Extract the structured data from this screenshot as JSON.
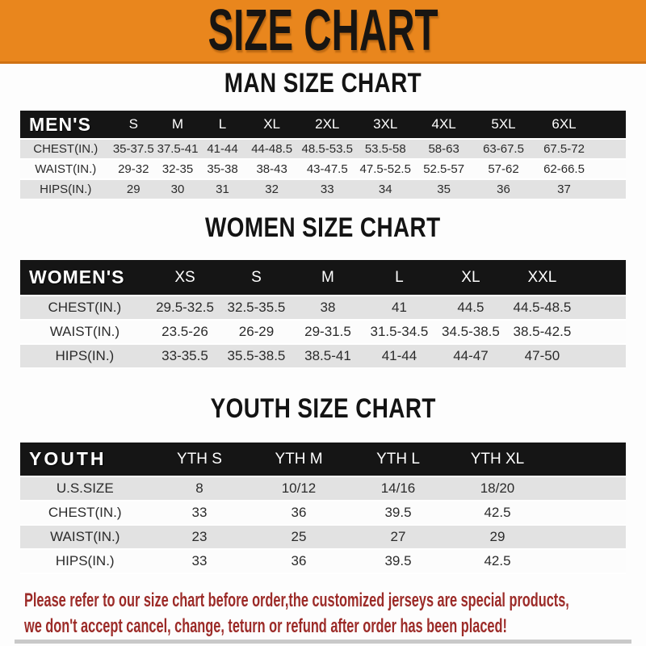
{
  "banner": {
    "title": "SIZE CHART"
  },
  "sections": [
    {
      "heading": "MAN SIZE CHART",
      "table": {
        "label": "MEN'S",
        "columns": [
          "S",
          "M",
          "L",
          "XL",
          "2XL",
          "3XL",
          "4XL",
          "5XL",
          "6XL"
        ],
        "rows": [
          {
            "label": "CHEST(IN.)",
            "values": [
              "35-37.5",
              "37.5-41",
              "41-44",
              "44-48.5",
              "48.5-53.5",
              "53.5-58",
              "58-63",
              "63-67.5",
              "67.5-72"
            ]
          },
          {
            "label": "WAIST(IN.)",
            "values": [
              "29-32",
              "32-35",
              "35-38",
              "38-43",
              "43-47.5",
              "47.5-52.5",
              "52.5-57",
              "57-62",
              "62-66.5"
            ]
          },
          {
            "label": "HIPS(IN.)",
            "values": [
              "29",
              "30",
              "31",
              "32",
              "33",
              "34",
              "35",
              "36",
              "37"
            ]
          }
        ]
      }
    },
    {
      "heading": "WOMEN SIZE CHART",
      "table": {
        "label": "WOMEN'S",
        "columns": [
          "XS",
          "S",
          "M",
          "L",
          "XL",
          "XXL"
        ],
        "rows": [
          {
            "label": "CHEST(IN.)",
            "values": [
              "29.5-32.5",
              "32.5-35.5",
              "38",
              "41",
              "44.5",
              "44.5-48.5"
            ]
          },
          {
            "label": "WAIST(IN.)",
            "values": [
              "23.5-26",
              "26-29",
              "29-31.5",
              "31.5-34.5",
              "34.5-38.5",
              "38.5-42.5"
            ]
          },
          {
            "label": "HIPS(IN.)",
            "values": [
              "33-35.5",
              "35.5-38.5",
              "38.5-41",
              "41-44",
              "44-47",
              "47-50"
            ]
          }
        ]
      }
    },
    {
      "heading": "YOUTH SIZE CHART",
      "table": {
        "label": "YOUTH",
        "columns": [
          "YTH S",
          "YTH M",
          "YTH L",
          "YTH XL"
        ],
        "rows": [
          {
            "label": "U.S.SIZE",
            "values": [
              "8",
              "10/12",
              "14/16",
              "18/20"
            ]
          },
          {
            "label": "CHEST(IN.)",
            "values": [
              "33",
              "36",
              "39.5",
              "42.5"
            ]
          },
          {
            "label": "WAIST(IN.)",
            "values": [
              "23",
              "25",
              "27",
              "29"
            ]
          },
          {
            "label": "HIPS(IN.)",
            "values": [
              "33",
              "36",
              "39.5",
              "42.5"
            ]
          }
        ]
      }
    }
  ],
  "footer": {
    "line1": "Please refer to our size chart before order,the customized jerseys are special products,",
    "line2": "we don't accept cancel, change, teturn or refund after order has been placed!"
  },
  "colors": {
    "banner_orange": "#E9861D",
    "banner_border": "#CF7214",
    "header_black": "#151515",
    "row_gray": "#E2E2E2",
    "row_white": "#FCFCFC",
    "footer_red": "#9C2B28"
  }
}
